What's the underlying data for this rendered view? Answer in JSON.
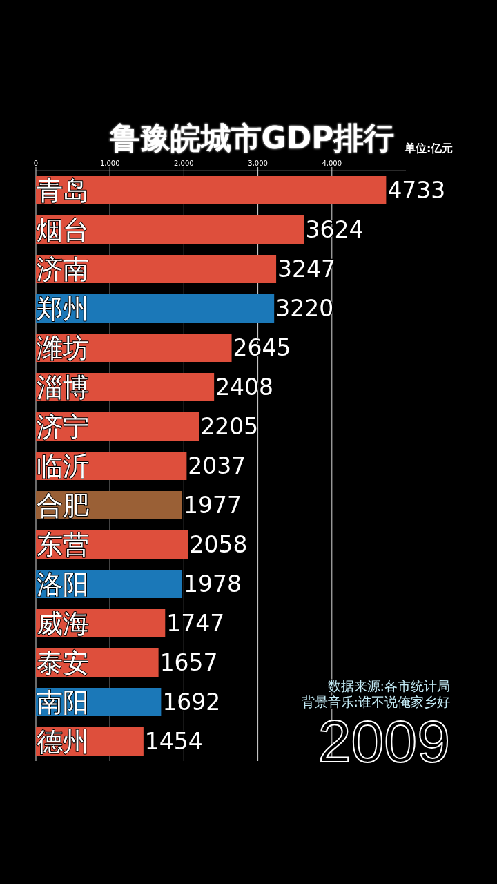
{
  "chart_data": {
    "type": "bar",
    "orientation": "horizontal",
    "title": "鲁豫皖城市GDP排行",
    "categories": [
      "青岛",
      "烟台",
      "济南",
      "郑州",
      "潍坊",
      "淄博",
      "济宁",
      "临沂",
      "合肥",
      "东营",
      "洛阳",
      "威海",
      "泰安",
      "南阳",
      "德州"
    ],
    "values": [
      4733,
      3624,
      3247,
      3220,
      2645,
      2408,
      2205,
      2037,
      1977,
      2058,
      1978,
      1747,
      1657,
      1692,
      1454
    ],
    "colors": [
      "#de4f3c",
      "#de4f3c",
      "#de4f3c",
      "#1b78b8",
      "#de4f3c",
      "#de4f3c",
      "#de4f3c",
      "#de4f3c",
      "#9a6036",
      "#de4f3c",
      "#1b78b8",
      "#de4f3c",
      "#de4f3c",
      "#1b78b8",
      "#de4f3c"
    ],
    "xlim": [
      0,
      5000
    ],
    "xticks": [
      0,
      {
        "value": 1000,
        "label": "1,000"
      },
      {
        "value": 2000,
        "label": "2,000"
      },
      {
        "value": 3000,
        "label": "3,000"
      },
      {
        "value": 4000,
        "label": "4,000"
      }
    ],
    "grid": "x",
    "data_labels": true,
    "annotations": [
      "单位:亿元",
      "数据来源:各市统计局",
      "背景音乐:谁不说俺家乡好",
      "2009"
    ]
  }
}
